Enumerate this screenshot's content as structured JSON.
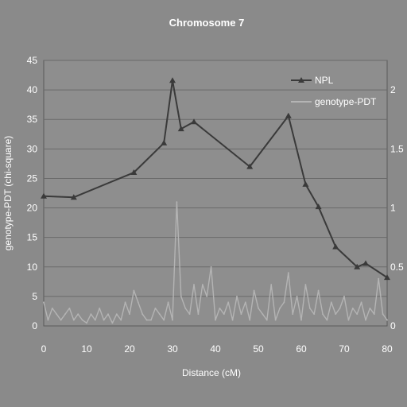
{
  "chart_data": {
    "type": "line",
    "title": "Chromosome 7",
    "xlabel": "Distance (cM)",
    "ylabel": "genotype-PDT (chi-square)",
    "y2label": "",
    "xlim": [
      0,
      80
    ],
    "ylim": [
      0,
      45
    ],
    "y2lim": [
      0,
      2.25
    ],
    "x_ticks": [
      "0",
      "10",
      "20",
      "30",
      "40",
      "50",
      "60",
      "70",
      "80"
    ],
    "y_ticks": [
      "0",
      "5",
      "10",
      "15",
      "20",
      "25",
      "30",
      "35",
      "40",
      "45"
    ],
    "y2_ticks": [
      "0",
      "0.5",
      "1",
      "1.5",
      "2"
    ],
    "grid": true,
    "legend_position": "top-right",
    "colors": {
      "npl": "#3a3a3a",
      "pdt": "#b4b4b4",
      "grid": "#6a6a6a",
      "plot_bg": "#8e8e8e"
    },
    "series": [
      {
        "name": "NPL",
        "axis": "right",
        "marker": "triangle",
        "x": [
          0,
          7,
          21,
          28,
          30,
          32,
          35,
          48,
          57,
          61,
          64,
          68,
          73,
          75,
          80
        ],
        "y": [
          1.1,
          1.09,
          1.3,
          1.55,
          2.08,
          1.67,
          1.73,
          1.35,
          1.78,
          1.2,
          1.01,
          0.67,
          0.5,
          0.53,
          0.41
        ]
      },
      {
        "name": "genotype-PDT",
        "axis": "left",
        "marker": "none",
        "x": [
          0,
          1,
          2,
          3,
          4,
          5,
          6,
          7,
          8,
          9,
          10,
          11,
          12,
          13,
          14,
          15,
          16,
          17,
          18,
          19,
          20,
          21,
          22,
          23,
          24,
          25,
          26,
          27,
          28,
          29,
          30,
          31,
          32,
          33,
          34,
          35,
          36,
          37,
          38,
          39,
          40,
          41,
          42,
          43,
          44,
          45,
          46,
          47,
          48,
          49,
          50,
          51,
          52,
          53,
          54,
          55,
          56,
          57,
          58,
          59,
          60,
          61,
          62,
          63,
          64,
          65,
          66,
          67,
          68,
          69,
          70,
          71,
          72,
          73,
          74,
          75,
          76,
          77,
          78,
          79,
          80
        ],
        "y": [
          4,
          1,
          3,
          2,
          1,
          2,
          3,
          1,
          2,
          1,
          0.5,
          2,
          1,
          3,
          1,
          2,
          0.5,
          2,
          1,
          4,
          2,
          6,
          4,
          2,
          1,
          1,
          3,
          2,
          1,
          4,
          1,
          21,
          5,
          3,
          2,
          7,
          2,
          7,
          5,
          10,
          1,
          3,
          2,
          4,
          1,
          5,
          2,
          4,
          1,
          6,
          3,
          2,
          1,
          7,
          1,
          3,
          4,
          9,
          2,
          5,
          1,
          7,
          3,
          2,
          6,
          2,
          1,
          4,
          2,
          3,
          5,
          1,
          3,
          2,
          4,
          1,
          3,
          2,
          8,
          2,
          1
        ]
      }
    ]
  }
}
